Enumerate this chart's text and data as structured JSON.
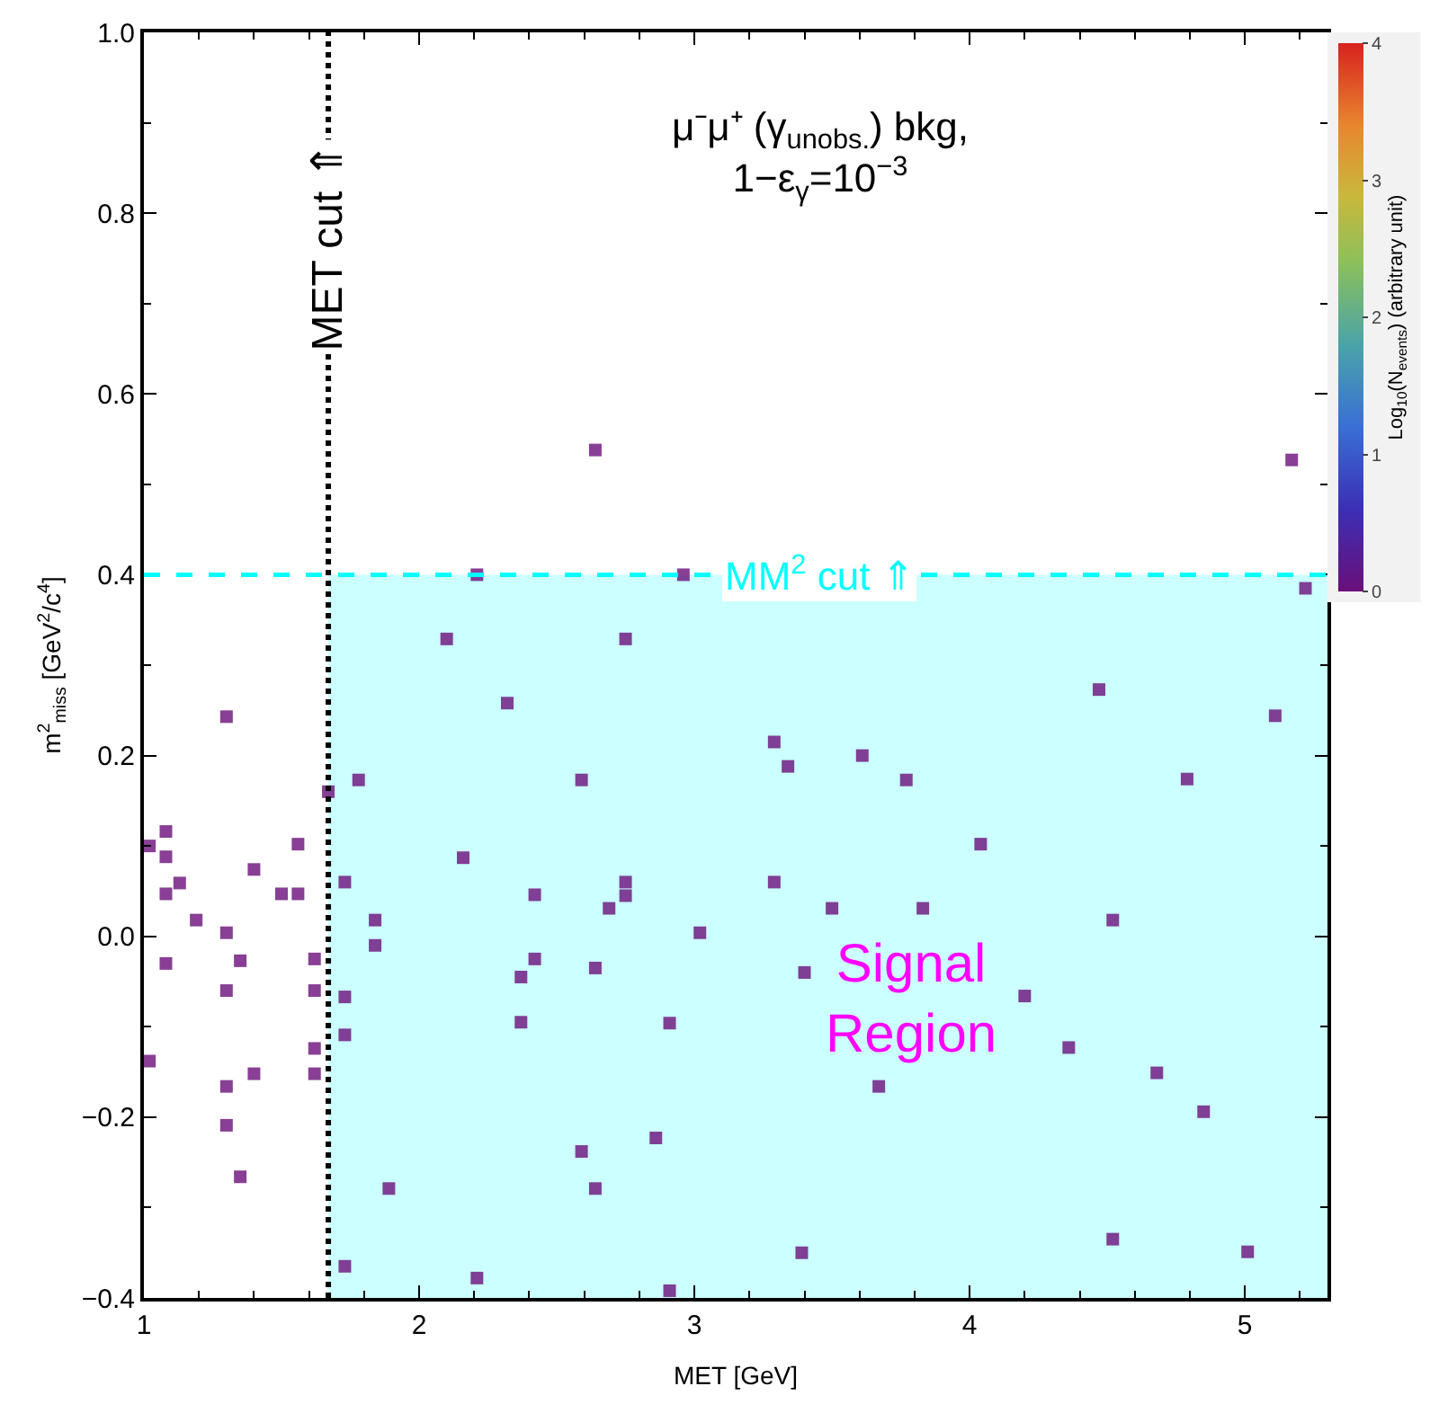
{
  "chart_data": {
    "type": "scatter",
    "title": "μ⁻μ⁺ (γ$_{unobs.}$) bkg,\n1−ε$_{γ}$=10$^{−3}$",
    "xlabel": "MET [GeV]",
    "ylabel": "m$^{2}$$_{miss}$ [GeV$^{2}$/c$^{4}$]",
    "clabel": "Log$_{10}$(N$_{events}$) (arbitrary unit)",
    "x": [
      1.02,
      1.08,
      1.08,
      1.08,
      1.13,
      1.19,
      1.08,
      1.3,
      1.3,
      1.3,
      1.35,
      1.4,
      1.02,
      1.3,
      1.3,
      1.4,
      1.35,
      1.5,
      1.56,
      1.56,
      1.62,
      1.62,
      1.62,
      1.62,
      1.67,
      1.73,
      1.78,
      1.84,
      1.84,
      1.73,
      1.73,
      1.89,
      1.73,
      2.1,
      2.16,
      2.21,
      2.21,
      2.32,
      2.37,
      2.37,
      2.42,
      2.42,
      2.96,
      2.75,
      2.59,
      3.29,
      3.34,
      3.61,
      3.77,
      2.75,
      2.75,
      2.69,
      3.02,
      3.29,
      3.5,
      3.83,
      3.4,
      2.64,
      2.91,
      3.67,
      2.86,
      2.59,
      2.64,
      3.39,
      2.91,
      5.17,
      5.22,
      4.47,
      5.11,
      4.79,
      4.04,
      4.52,
      4.2,
      4.36,
      4.68,
      4.85,
      4.52,
      5.01,
      2.64
    ],
    "values": [
      0.1,
      0.116,
      0.088,
      0.047,
      0.059,
      0.018,
      -0.03,
      0.243,
      0.004,
      -0.06,
      -0.027,
      0.074,
      -0.138,
      -0.166,
      -0.209,
      -0.152,
      -0.266,
      0.047,
      0.047,
      0.102,
      -0.025,
      -0.06,
      -0.124,
      -0.152,
      0.16,
      0.06,
      0.173,
      0.018,
      -0.01,
      -0.067,
      -0.109,
      -0.279,
      -0.365,
      0.329,
      0.087,
      0.4,
      -0.378,
      0.258,
      -0.045,
      -0.095,
      0.046,
      -0.025,
      0.4,
      0.329,
      0.173,
      0.215,
      0.188,
      0.2,
      0.173,
      0.06,
      0.045,
      0.031,
      0.004,
      0.06,
      0.031,
      0.031,
      -0.04,
      -0.035,
      -0.096,
      -0.166,
      -0.223,
      -0.238,
      -0.279,
      -0.35,
      -0.392,
      0.527,
      0.385,
      0.273,
      0.244,
      0.174,
      0.102,
      0.018,
      -0.066,
      -0.123,
      -0.151,
      -0.194,
      -0.335,
      -0.349,
      0.538
    ],
    "cvalues": [
      0,
      0,
      0,
      0,
      0,
      0,
      0,
      0,
      0,
      0,
      0,
      0,
      0,
      0,
      0,
      0,
      0,
      0,
      0,
      0,
      0,
      0,
      0,
      0,
      0,
      0,
      0,
      0,
      0,
      0,
      0,
      0,
      0,
      0,
      0,
      0,
      0,
      0,
      0,
      0,
      0,
      0,
      0,
      0,
      0,
      0,
      0,
      0,
      0,
      0,
      0,
      0,
      0,
      0,
      0,
      0,
      0,
      0,
      0,
      0,
      0,
      0,
      0,
      0,
      0,
      0,
      0,
      0,
      0,
      0,
      0,
      0,
      0,
      0,
      0,
      0,
      0,
      0,
      0
    ],
    "clim": [
      0,
      4
    ],
    "cticks": [
      0,
      1,
      2,
      3,
      4
    ],
    "xlim": [
      1,
      5.3
    ],
    "xticks": [
      1,
      2,
      3,
      4,
      5
    ],
    "ylim": [
      -0.4,
      1.0
    ],
    "yticks": [
      {
        "value": -0.4,
        "label": "−0.4"
      },
      {
        "value": -0.2,
        "label": "−0.2"
      },
      {
        "value": 0,
        "label": "0.0"
      },
      0.2,
      0.4,
      0.6,
      0.8,
      {
        "value": 1,
        "label": "1.0"
      }
    ],
    "ref_lines": [
      {
        "axis": "x",
        "value": 1.67,
        "label": "MET cut ⇑",
        "color": "#000000",
        "line_style": "dotted"
      },
      {
        "axis": "y",
        "value": 0.4,
        "label": "MM$^{2}$ cut ⇑",
        "color": "#00ffff",
        "line_style": "dashed"
      }
    ],
    "bands": [
      {
        "axis": "y",
        "from": -0.4,
        "to": 0.4,
        "label": "Signal\nRegion",
        "color": "#ccffff"
      }
    ],
    "marker": "square",
    "grid": false
  }
}
